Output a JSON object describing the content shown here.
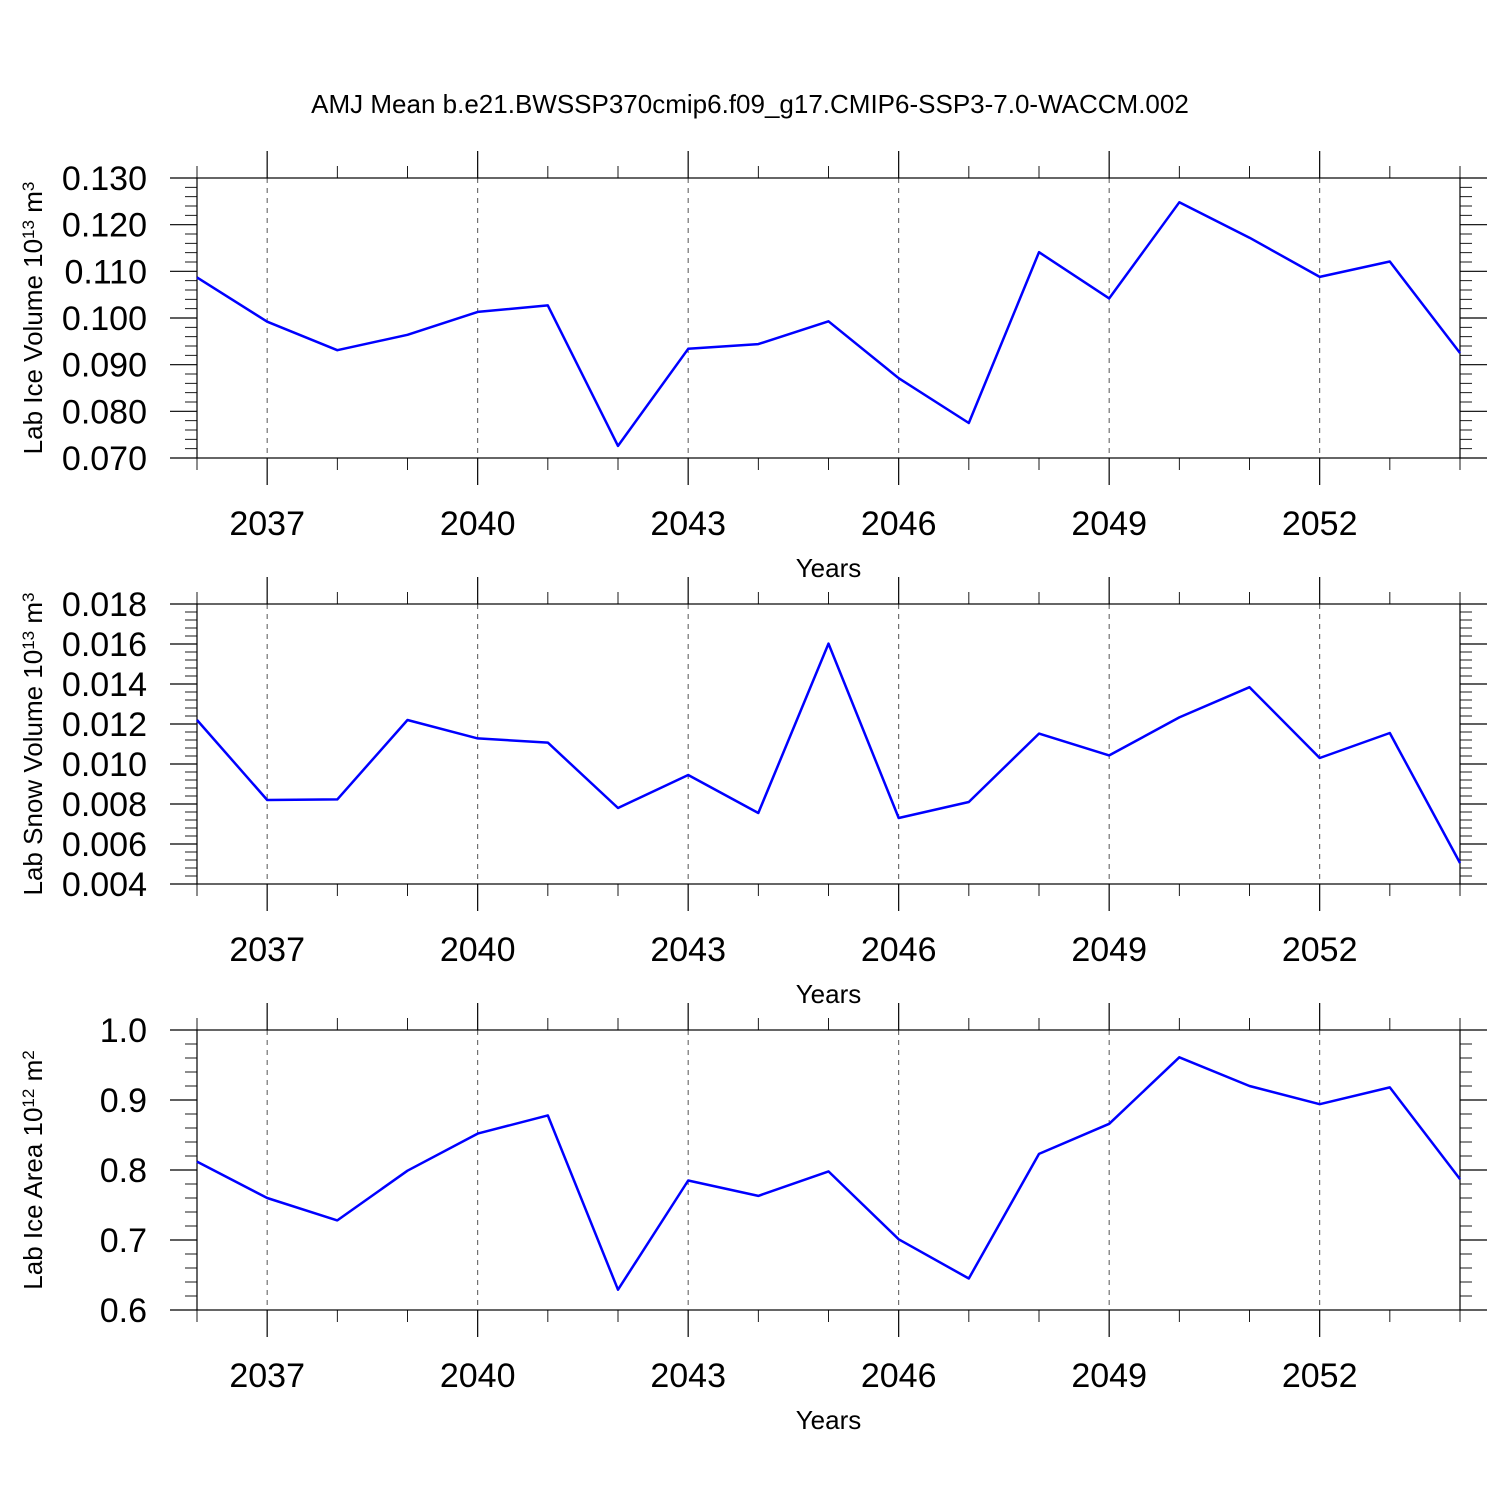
{
  "figure": {
    "title": "AMJ Mean b.e21.BWSSP370cmip6.f09_g17.CMIP6-SSP3-7.0-WACCM.002"
  },
  "colors": {
    "series": "#0000ff",
    "axes": "#000000",
    "grid": "#555555"
  },
  "chart_data": [
    {
      "type": "line",
      "title": "",
      "xlabel": "Years",
      "ylabel": "Lab Ice Volume 10",
      "ylabel_sup": "13",
      "ylabel_unit": " m",
      "ylabel_unit_sup": "3",
      "xlim": [
        2036,
        2054
      ],
      "ylim": [
        0.07,
        0.13
      ],
      "xticks": [
        2037,
        2040,
        2043,
        2046,
        2049,
        2052
      ],
      "xticklabels": [
        "2037",
        "2040",
        "2043",
        "2046",
        "2049",
        "2052"
      ],
      "yticks": [
        0.07,
        0.08,
        0.09,
        0.1,
        0.11,
        0.12,
        0.13
      ],
      "yticklabels": [
        "0.070",
        "0.080",
        "0.090",
        "0.100",
        "0.110",
        "0.120",
        "0.130"
      ],
      "grid": "vertical dashed at major x ticks",
      "x": [
        2036,
        2037,
        2038,
        2039,
        2040,
        2041,
        2042,
        2043,
        2044,
        2045,
        2046,
        2047,
        2048,
        2049,
        2050,
        2051,
        2052,
        2053,
        2054
      ],
      "values": [
        0.1087,
        0.0992,
        0.0931,
        0.0964,
        0.1013,
        0.1027,
        0.0726,
        0.0934,
        0.0944,
        0.0993,
        0.0871,
        0.0775,
        0.1141,
        0.1042,
        0.1248,
        0.1172,
        0.1088,
        0.1121,
        0.0925
      ]
    },
    {
      "type": "line",
      "title": "",
      "xlabel": "Years",
      "ylabel": "Lab Snow Volume 10",
      "ylabel_sup": "13",
      "ylabel_unit": " m",
      "ylabel_unit_sup": "3",
      "xlim": [
        2036,
        2054
      ],
      "ylim": [
        0.004,
        0.018
      ],
      "xticks": [
        2037,
        2040,
        2043,
        2046,
        2049,
        2052
      ],
      "xticklabels": [
        "2037",
        "2040",
        "2043",
        "2046",
        "2049",
        "2052"
      ],
      "yticks": [
        0.004,
        0.006,
        0.008,
        0.01,
        0.012,
        0.014,
        0.016,
        0.018
      ],
      "yticklabels": [
        "0.004",
        "0.006",
        "0.008",
        "0.010",
        "0.012",
        "0.014",
        "0.016",
        "0.018"
      ],
      "grid": "vertical dashed at major x ticks",
      "x": [
        2036,
        2037,
        2038,
        2039,
        2040,
        2041,
        2042,
        2043,
        2044,
        2045,
        2046,
        2047,
        2048,
        2049,
        2050,
        2051,
        2052,
        2053,
        2054
      ],
      "values": [
        0.0122,
        0.0082,
        0.00823,
        0.0122,
        0.01128,
        0.01107,
        0.0078,
        0.00945,
        0.00755,
        0.01602,
        0.0073,
        0.0081,
        0.01152,
        0.01043,
        0.01233,
        0.01384,
        0.0103,
        0.01155,
        0.00505
      ]
    },
    {
      "type": "line",
      "title": "",
      "xlabel": "Years",
      "ylabel": "Lab Ice Area 10",
      "ylabel_sup": "12",
      "ylabel_unit": " m",
      "ylabel_unit_sup": "2",
      "xlim": [
        2036,
        2054
      ],
      "ylim": [
        0.6,
        1.0
      ],
      "xticks": [
        2037,
        2040,
        2043,
        2046,
        2049,
        2052
      ],
      "xticklabels": [
        "2037",
        "2040",
        "2043",
        "2046",
        "2049",
        "2052"
      ],
      "yticks": [
        0.6,
        0.7,
        0.8,
        0.9,
        1.0
      ],
      "yticklabels": [
        "0.6",
        "0.7",
        "0.8",
        "0.9",
        "1.0"
      ],
      "grid": "vertical dashed at major x ticks",
      "x": [
        2036,
        2037,
        2038,
        2039,
        2040,
        2041,
        2042,
        2043,
        2044,
        2045,
        2046,
        2047,
        2048,
        2049,
        2050,
        2051,
        2052,
        2053,
        2054
      ],
      "values": [
        0.812,
        0.76,
        0.728,
        0.799,
        0.852,
        0.878,
        0.629,
        0.785,
        0.763,
        0.798,
        0.701,
        0.645,
        0.823,
        0.866,
        0.961,
        0.92,
        0.894,
        0.918,
        0.787
      ]
    }
  ]
}
